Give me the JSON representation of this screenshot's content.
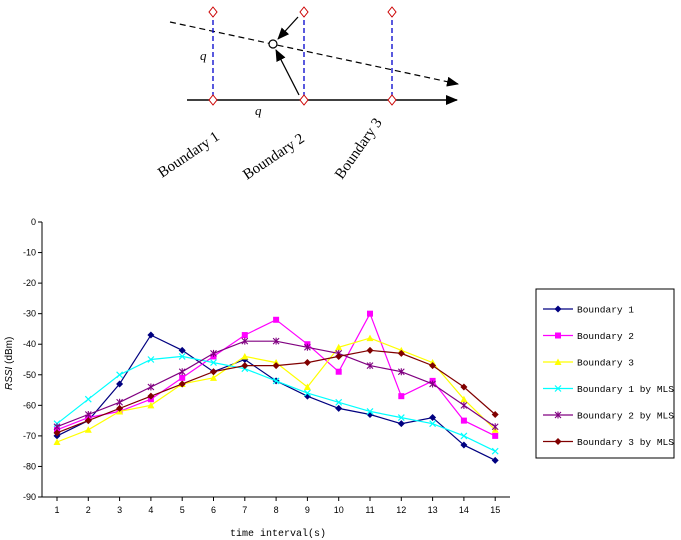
{
  "diagram": {
    "q_label_vertical": "q",
    "q_label_horizontal": "q",
    "boundary_labels": [
      "Boundary 1",
      "Boundary 2",
      "Boundary 3"
    ]
  },
  "chart_data": {
    "type": "line",
    "xlabel": "time interval(s)",
    "ylabel_italic": "RSSI",
    "ylabel_unit": " (dBm)",
    "ylim": [
      -90,
      0
    ],
    "y_ticks": [
      0,
      -10,
      -20,
      -30,
      -40,
      -50,
      -60,
      -70,
      -80,
      -90
    ],
    "categories": [
      1,
      2,
      3,
      4,
      5,
      6,
      7,
      8,
      9,
      10,
      11,
      12,
      13,
      14,
      15
    ],
    "legend_position": "right",
    "series": [
      {
        "name": "Boundary 1",
        "color": "#000080",
        "marker": "diamond",
        "values": [
          -70,
          -65,
          -53,
          -37,
          -42,
          -49,
          -45,
          -52,
          -57,
          -61,
          -63,
          -66,
          -64,
          -73,
          -78
        ]
      },
      {
        "name": "Boundary 2",
        "color": "#ff00ff",
        "marker": "square",
        "values": [
          -68,
          -64,
          -62,
          -58,
          -51,
          -44,
          -37,
          -32,
          -40,
          -49,
          -30,
          -57,
          -52,
          -65,
          -70
        ]
      },
      {
        "name": "Boundary 3",
        "color": "#ffff00",
        "marker": "triangle",
        "values": [
          -72,
          -68,
          -62,
          -60,
          -53,
          -51,
          -44,
          -46,
          -54,
          -41,
          -38,
          -42,
          -46,
          -58,
          -68
        ]
      },
      {
        "name": "Boundary 1 by MLS",
        "color": "#00ffff",
        "marker": "x",
        "values": [
          -66,
          -58,
          -50,
          -45,
          -44,
          -46,
          -48,
          -52,
          -56,
          -59,
          -62,
          -64,
          -66,
          -70,
          -75
        ]
      },
      {
        "name": "Boundary 2 by MLS",
        "color": "#800080",
        "marker": "star",
        "values": [
          -67,
          -63,
          -59,
          -54,
          -49,
          -43,
          -39,
          -39,
          -41,
          -43,
          -47,
          -49,
          -53,
          -60,
          -67
        ]
      },
      {
        "name": "Boundary 3 by MLS",
        "color": "#800000",
        "marker": "diamond",
        "values": [
          -69,
          -65,
          -61,
          -57,
          -53,
          -49,
          -47,
          -47,
          -46,
          -44,
          -42,
          -43,
          -47,
          -54,
          -63
        ]
      }
    ]
  }
}
